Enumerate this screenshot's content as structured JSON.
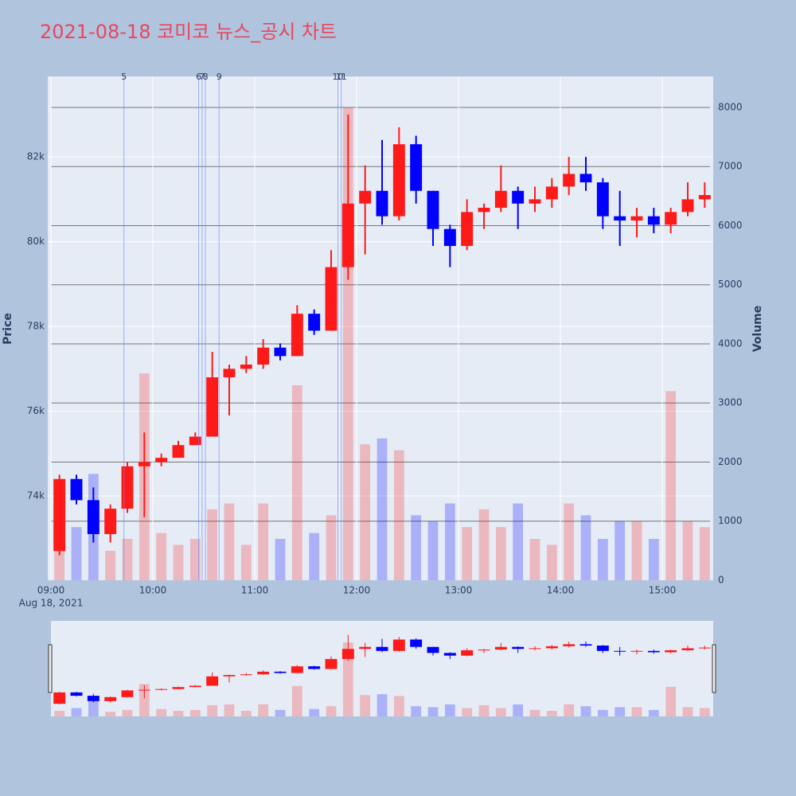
{
  "chart_data": {
    "type": "candlestick",
    "title": "2021-08-18 코미코 뉴스_공시 차트",
    "y_axis_label": "Price",
    "y2_axis_label": "Volume",
    "date_label": "Aug 18, 2021",
    "x": [
      "09:00",
      "09:10",
      "09:20",
      "09:30",
      "09:40",
      "09:50",
      "10:00",
      "10:10",
      "10:20",
      "10:30",
      "10:40",
      "10:50",
      "11:00",
      "11:10",
      "11:20",
      "11:30",
      "11:40",
      "11:50",
      "12:00",
      "12:10",
      "12:20",
      "12:30",
      "12:40",
      "12:50",
      "13:00",
      "13:10",
      "13:20",
      "13:30",
      "13:40",
      "13:50",
      "14:00",
      "14:10",
      "14:20",
      "14:30",
      "14:40",
      "14:50",
      "15:00",
      "15:10",
      "15:20"
    ],
    "open": [
      72700,
      74400,
      73900,
      73100,
      73700,
      74700,
      74800,
      74900,
      75200,
      75400,
      76800,
      77000,
      77100,
      77500,
      77300,
      78300,
      77900,
      79400,
      80900,
      81200,
      80600,
      82300,
      81200,
      80300,
      79900,
      80700,
      80800,
      81200,
      80900,
      81000,
      81300,
      81600,
      81400,
      80600,
      80500,
      80600,
      80400,
      80700,
      81000
    ],
    "high": [
      74500,
      74500,
      74200,
      73800,
      74800,
      75500,
      75000,
      75300,
      75500,
      77400,
      77100,
      77300,
      77700,
      77600,
      78500,
      78400,
      79800,
      83000,
      81800,
      82400,
      82700,
      82500,
      81200,
      80400,
      81000,
      80900,
      81800,
      81300,
      81300,
      81500,
      82000,
      82000,
      81500,
      81200,
      80800,
      80800,
      80800,
      81400,
      81400
    ],
    "low": [
      72600,
      73800,
      72900,
      72900,
      73600,
      73500,
      74700,
      74900,
      75200,
      75400,
      75900,
      76900,
      77000,
      77200,
      77300,
      77800,
      77900,
      79100,
      79700,
      80400,
      80500,
      80900,
      79900,
      79400,
      79800,
      80300,
      80700,
      80300,
      80700,
      80800,
      81100,
      81200,
      80300,
      79900,
      80100,
      80200,
      80200,
      80600,
      80800
    ],
    "close": [
      74400,
      73900,
      73100,
      73700,
      74700,
      74800,
      74900,
      75200,
      75400,
      76800,
      77000,
      77100,
      77500,
      77300,
      78300,
      77900,
      79400,
      80900,
      81200,
      80600,
      82300,
      81200,
      80300,
      79900,
      80700,
      80800,
      81200,
      80900,
      81000,
      81300,
      81600,
      81400,
      80600,
      80500,
      80600,
      80400,
      80700,
      81000,
      81100
    ],
    "volume": [
      600,
      900,
      1800,
      500,
      700,
      3500,
      800,
      600,
      700,
      1200,
      1300,
      600,
      1300,
      700,
      3300,
      800,
      1100,
      8000,
      2300,
      2400,
      2200,
      1100,
      1000,
      1300,
      900,
      1200,
      900,
      1300,
      700,
      600,
      1300,
      1100,
      700,
      1000,
      1000,
      700,
      3200,
      1000,
      900
    ],
    "increasing_color": "#ff1a1a",
    "decreasing_color": "#0000ff",
    "events": [
      {
        "x": "09:43",
        "label": "5"
      },
      {
        "x": "10:27",
        "label": "6"
      },
      {
        "x": "10:29",
        "label": "7"
      },
      {
        "x": "10:31",
        "label": "8"
      },
      {
        "x": "10:39",
        "label": "9"
      },
      {
        "x": "11:49",
        "label": "10"
      },
      {
        "x": "11:51",
        "label": "11"
      }
    ],
    "xlim": [
      "09:00",
      "15:30"
    ],
    "xticks": [
      "09:00",
      "10:00",
      "11:00",
      "12:00",
      "13:00",
      "14:00",
      "15:00"
    ],
    "ylim": [
      72010,
      83900
    ],
    "yticks": [
      {
        "value": 74000,
        "label": "74k"
      },
      {
        "value": 76000,
        "label": "76k"
      },
      {
        "value": 78000,
        "label": "78k"
      },
      {
        "value": 80000,
        "label": "80k"
      },
      {
        "value": 82000,
        "label": "82k"
      }
    ],
    "y2lim": [
      0,
      8525
    ],
    "y2ticks": [
      0,
      1000,
      2000,
      3000,
      4000,
      5000,
      6000,
      7000,
      8000
    ],
    "rangeslider": true
  }
}
